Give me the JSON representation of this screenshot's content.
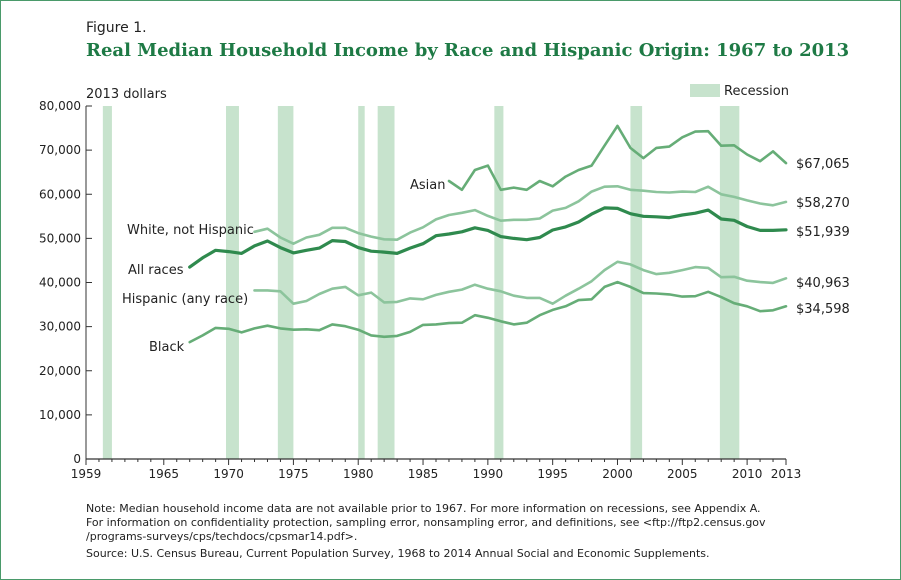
{
  "figure_label": "Figure 1.",
  "title": "Real Median Household Income by Race and Hispanic Origin: 1967 to 2013",
  "notes": {
    "line1": "Note: Median household income data are not available prior to 1967. For more information on recessions, see Appendix A.",
    "line2": "For information on confidentiality protection, sampling error, nonsampling error, and definitions, see <ftp://ftp2.census.gov",
    "line3": "/programs-surveys/cps/techdocs/cpsmar14.pdf>.",
    "source": "Source: U.S. Census Bureau, Current Population Survey, 1968 to 2014 Annual Social and Economic Supplements."
  },
  "colors": {
    "dark": "#2f8a4e",
    "medium": "#66ad77",
    "light": "#8cc49c",
    "recession": "#c7e3cd",
    "axis": "#333333",
    "frame": "#4a9a6a"
  },
  "chart_data": {
    "type": "line",
    "title": "Real Median Household Income by Race and Hispanic Origin: 1967 to 2013",
    "ylabel": "2013 dollars",
    "xlim": [
      1959,
      2013
    ],
    "ylim": [
      0,
      80000
    ],
    "xticks": [
      1959,
      1965,
      1970,
      1975,
      1980,
      1985,
      1990,
      1995,
      2000,
      2005,
      2010,
      2013
    ],
    "yticks": [
      0,
      10000,
      20000,
      30000,
      40000,
      50000,
      60000,
      70000,
      80000
    ],
    "ytick_labels": [
      "0",
      "10,000",
      "20,000",
      "30,000",
      "40,000",
      "50,000",
      "60,000",
      "70,000",
      "80,000"
    ],
    "legend": {
      "label": "Recession",
      "position": "top-right"
    },
    "recessions": [
      [
        1960.3,
        1961.0
      ],
      [
        1969.8,
        1970.8
      ],
      [
        1973.8,
        1975.0
      ],
      [
        1980.0,
        1980.5
      ],
      [
        1981.5,
        1982.8
      ],
      [
        1990.5,
        1991.2
      ],
      [
        2001.0,
        2001.9
      ],
      [
        2007.9,
        2009.4
      ]
    ],
    "series": [
      {
        "name": "Asian",
        "end_label": "$67,065",
        "style": "medium",
        "years": [
          1987,
          1988,
          1989,
          1990,
          1991,
          1992,
          1993,
          1994,
          1995,
          1996,
          1997,
          1998,
          1999,
          2000,
          2001,
          2002,
          2003,
          2004,
          2005,
          2006,
          2007,
          2008,
          2009,
          2010,
          2011,
          2012,
          2013
        ],
        "values": [
          63000,
          61000,
          65500,
          66500,
          61000,
          61500,
          61000,
          63000,
          61800,
          64000,
          65500,
          66500,
          71000,
          75500,
          70500,
          68200,
          70500,
          70800,
          72900,
          74200,
          74300,
          71000,
          71100,
          69000,
          67500,
          69700,
          67065
        ]
      },
      {
        "name": "White, not Hispanic",
        "end_label": "$58,270",
        "style": "light",
        "years": [
          1972,
          1973,
          1974,
          1975,
          1976,
          1977,
          1978,
          1979,
          1980,
          1981,
          1982,
          1983,
          1984,
          1985,
          1986,
          1987,
          1988,
          1989,
          1990,
          1991,
          1992,
          1993,
          1994,
          1995,
          1996,
          1997,
          1998,
          1999,
          2000,
          2001,
          2002,
          2003,
          2004,
          2005,
          2006,
          2007,
          2008,
          2009,
          2010,
          2011,
          2012,
          2013
        ],
        "values": [
          51500,
          52200,
          50200,
          48800,
          50200,
          50800,
          52400,
          52400,
          51200,
          50400,
          49800,
          49700,
          51300,
          52500,
          54300,
          55300,
          55800,
          56400,
          55100,
          54000,
          54200,
          54200,
          54500,
          56300,
          56900,
          58400,
          60600,
          61700,
          61800,
          61000,
          60800,
          60500,
          60400,
          60600,
          60500,
          61700,
          60000,
          59400,
          58600,
          57900,
          57500,
          58270
        ]
      },
      {
        "name": "All races",
        "end_label": "$51,939",
        "style": "dark",
        "years": [
          1967,
          1968,
          1969,
          1970,
          1971,
          1972,
          1973,
          1974,
          1975,
          1976,
          1977,
          1978,
          1979,
          1980,
          1981,
          1982,
          1983,
          1984,
          1985,
          1986,
          1987,
          1988,
          1989,
          1990,
          1991,
          1992,
          1993,
          1994,
          1995,
          1996,
          1997,
          1998,
          1999,
          2000,
          2001,
          2002,
          2003,
          2004,
          2005,
          2006,
          2007,
          2008,
          2009,
          2010,
          2011,
          2012,
          2013
        ],
        "values": [
          43500,
          45600,
          47300,
          47000,
          46600,
          48300,
          49400,
          47900,
          46700,
          47300,
          47800,
          49500,
          49300,
          47900,
          47100,
          46900,
          46600,
          47800,
          48800,
          50600,
          51000,
          51500,
          52400,
          51800,
          50400,
          50000,
          49700,
          50200,
          51900,
          52600,
          53700,
          55500,
          56900,
          56800,
          55600,
          55000,
          54900,
          54700,
          55300,
          55700,
          56400,
          54400,
          54100,
          52700,
          51800,
          51800,
          51939
        ]
      },
      {
        "name": "Hispanic (any race)",
        "end_label": "$40,963",
        "style": "light",
        "years": [
          1972,
          1973,
          1974,
          1975,
          1976,
          1977,
          1978,
          1979,
          1980,
          1981,
          1982,
          1983,
          1984,
          1985,
          1986,
          1987,
          1988,
          1989,
          1990,
          1991,
          1992,
          1993,
          1994,
          1995,
          1996,
          1997,
          1998,
          1999,
          2000,
          2001,
          2002,
          2003,
          2004,
          2005,
          2006,
          2007,
          2008,
          2009,
          2010,
          2011,
          2012,
          2013
        ],
        "values": [
          38200,
          38200,
          38000,
          35200,
          35800,
          37400,
          38600,
          39000,
          37100,
          37700,
          35500,
          35600,
          36400,
          36200,
          37200,
          37900,
          38400,
          39500,
          38600,
          38000,
          37000,
          36500,
          36500,
          35200,
          37000,
          38600,
          40300,
          42800,
          44700,
          44100,
          42800,
          41900,
          42200,
          42800,
          43500,
          43300,
          41200,
          41300,
          40400,
          40100,
          39900,
          40963
        ]
      },
      {
        "name": "Black",
        "end_label": "$34,598",
        "style": "medium",
        "years": [
          1967,
          1968,
          1969,
          1970,
          1971,
          1972,
          1973,
          1974,
          1975,
          1976,
          1977,
          1978,
          1979,
          1980,
          1981,
          1982,
          1983,
          1984,
          1985,
          1986,
          1987,
          1988,
          1989,
          1990,
          1991,
          1992,
          1993,
          1994,
          1995,
          1996,
          1997,
          1998,
          1999,
          2000,
          2001,
          2002,
          2003,
          2004,
          2005,
          2006,
          2007,
          2008,
          2009,
          2010,
          2011,
          2012,
          2013
        ],
        "values": [
          26500,
          28000,
          29700,
          29500,
          28700,
          29600,
          30200,
          29600,
          29300,
          29400,
          29200,
          30500,
          30100,
          29300,
          28000,
          27700,
          27900,
          28800,
          30400,
          30500,
          30800,
          30900,
          32600,
          32000,
          31200,
          30500,
          30900,
          32600,
          33800,
          34600,
          36000,
          36200,
          39000,
          40100,
          39000,
          37600,
          37500,
          37300,
          36800,
          36900,
          37900,
          36700,
          35300,
          34600,
          33500,
          33700,
          34598
        ]
      }
    ]
  }
}
